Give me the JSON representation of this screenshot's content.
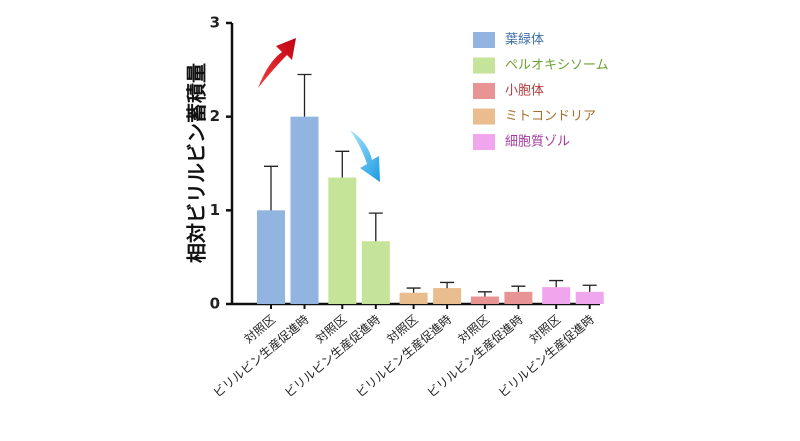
{
  "chart_data": {
    "type": "bar",
    "y_label": "相対ビリルビン蓄積量",
    "categories": [
      "対照区",
      "ビリルビン生産促進時",
      "対照区",
      "ビリルビン生産促進時",
      "対照区",
      "ビリルビン生産促進時",
      "対照区",
      "ビリルビン生産促進時",
      "対照区",
      "ビリルビン生産促進時"
    ],
    "series": [
      {
        "name": "葉緑体",
        "color": "#92b4e0",
        "text_color": "#3f6ea8",
        "values": [
          1.0,
          2.0,
          null,
          null,
          null,
          null,
          null,
          null,
          null,
          null
        ],
        "errors": [
          0.47,
          0.45,
          null,
          null,
          null,
          null,
          null,
          null,
          null,
          null
        ]
      },
      {
        "name": "ペルオキシソーム",
        "color": "#c6e39a",
        "text_color": "#6aa232",
        "values": [
          null,
          null,
          1.35,
          0.67,
          null,
          null,
          null,
          null,
          null,
          null
        ],
        "errors": [
          null,
          null,
          0.28,
          0.3,
          null,
          null,
          null,
          null,
          null,
          null
        ]
      },
      {
        "name": "小胞体",
        "color": "#e99494",
        "text_color": "#b53b3b",
        "values": [
          null,
          null,
          null,
          null,
          null,
          null,
          0.08,
          0.13,
          null,
          null
        ],
        "errors": [
          null,
          null,
          null,
          null,
          null,
          null,
          0.05,
          0.06,
          null,
          null
        ]
      },
      {
        "name": "ミトコンドリア",
        "color": "#e9bd8e",
        "text_color": "#a46f2e",
        "values": [
          null,
          null,
          null,
          null,
          0.12,
          0.17,
          null,
          null,
          null,
          null
        ],
        "errors": [
          null,
          null,
          null,
          null,
          0.05,
          0.06,
          null,
          null,
          null,
          null
        ]
      },
      {
        "name": "細胞質ゾル",
        "color": "#f0a6ec",
        "text_color": "#a23aa0",
        "values": [
          null,
          null,
          null,
          null,
          null,
          null,
          null,
          null,
          0.18,
          0.13
        ],
        "errors": [
          null,
          null,
          null,
          null,
          null,
          null,
          null,
          null,
          0.07,
          0.07
        ]
      }
    ],
    "ylim": [
      0,
      3
    ],
    "yticks": [
      0,
      1,
      2,
      3
    ],
    "grid": false
  }
}
